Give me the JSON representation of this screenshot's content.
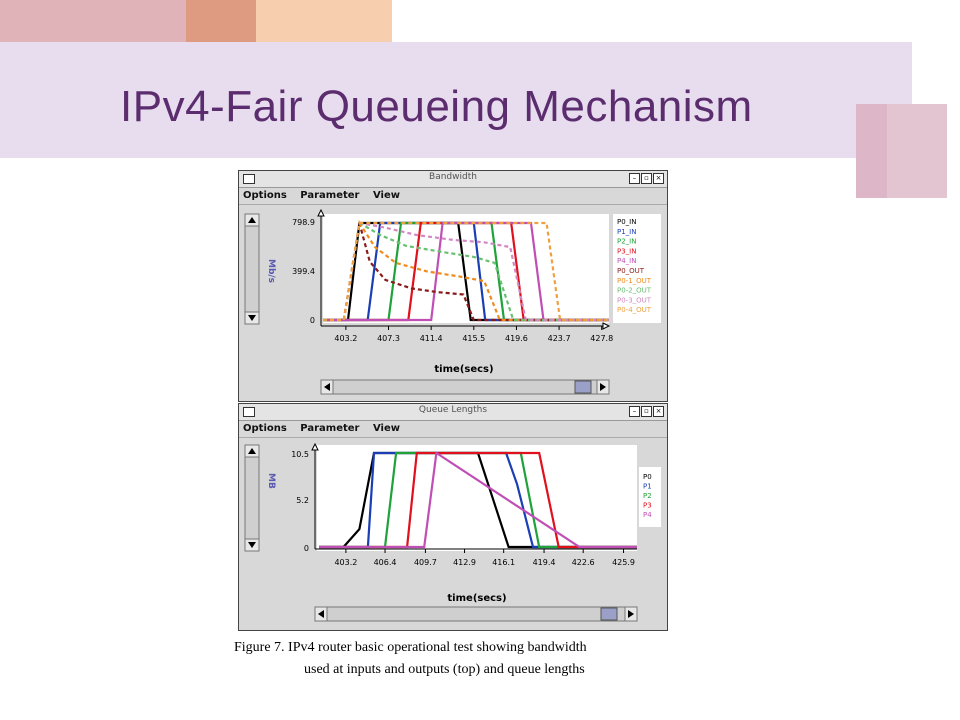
{
  "slide": {
    "title": "IPv4-Fair Queueing Mechanism",
    "caption_line1": "Figure 7. IPv4 router basic operational test showing bandwidth",
    "caption_line2": "used at inputs and outputs (top) and queue lengths",
    "colors": {
      "title": "#5b2d6e",
      "band": "#e8dcef",
      "pink": "#dfb3b8",
      "salmon": "#df9a82",
      "peach": "#f7cfae",
      "mauve": "#ddb6c8"
    }
  },
  "bandwidth_window": {
    "title": "Bandwidth",
    "menu": [
      "Options",
      "Parameter",
      "View"
    ],
    "y_axis_label": "Mb/s",
    "x_axis_label": "time(secs)",
    "y_ticks": [
      "798.9",
      "399.4",
      "0"
    ],
    "x_ticks": [
      "403.2",
      "407.3",
      "411.4",
      "415.5",
      "419.6",
      "423.7",
      "427.8"
    ],
    "legend": [
      "P0_IN",
      "P1_IN",
      "P2_IN",
      "P3_IN",
      "P4_IN",
      "P0_OUT",
      "P0-1_OUT",
      "P0-2_OUT",
      "P0-3_OUT",
      "P0-4_OUT"
    ]
  },
  "queue_window": {
    "title": "Queue Lengths",
    "menu": [
      "Options",
      "Parameter",
      "View"
    ],
    "y_axis_label": "MB",
    "x_axis_label": "time(secs)",
    "y_ticks": [
      "10.5",
      "5.2",
      "0"
    ],
    "x_ticks": [
      "403.2",
      "406.4",
      "409.7",
      "412.9",
      "416.1",
      "419.4",
      "422.6",
      "425.9"
    ],
    "legend": [
      "P0",
      "P1",
      "P2",
      "P3",
      "P4"
    ]
  },
  "chart_data": [
    {
      "type": "line",
      "xlabel": "time(secs)",
      "ylabel": "Mb/s",
      "xlim": [
        401.0,
        428.5
      ],
      "ylim": [
        0,
        798.9
      ],
      "series": [
        {
          "name": "P0_IN",
          "color": "#000000",
          "dash": false,
          "x": [
            401.0,
            403.4,
            404.5,
            414.0,
            415.2,
            428.5
          ],
          "y": [
            0,
            0,
            798.9,
            798.9,
            0,
            0
          ]
        },
        {
          "name": "P1_IN",
          "color": "#1a3fb5",
          "dash": false,
          "x": [
            401.0,
            405.3,
            406.5,
            415.5,
            416.6,
            428.5
          ],
          "y": [
            0,
            0,
            798.9,
            798.9,
            0,
            0
          ]
        },
        {
          "name": "P2_IN",
          "color": "#1fa23a",
          "dash": false,
          "x": [
            401.0,
            407.3,
            408.5,
            417.2,
            418.4,
            428.5
          ],
          "y": [
            0,
            0,
            798.9,
            798.9,
            0,
            0
          ]
        },
        {
          "name": "P3_IN",
          "color": "#e0101c",
          "dash": false,
          "x": [
            401.0,
            409.2,
            410.4,
            419.1,
            420.3,
            428.5
          ],
          "y": [
            0,
            0,
            798.9,
            798.9,
            0,
            0
          ]
        },
        {
          "name": "P4_IN",
          "color": "#c04fb5",
          "dash": false,
          "x": [
            401.0,
            411.4,
            412.5,
            421.0,
            422.2,
            428.5
          ],
          "y": [
            0,
            0,
            798.9,
            798.9,
            0,
            0
          ]
        },
        {
          "name": "P0_OUT",
          "color": "#8b1a1a",
          "dash": true,
          "x": [
            401.0,
            403.0,
            404.5,
            405.5,
            407.0,
            409.5,
            412.0,
            414.5,
            415.5,
            428.5
          ],
          "y": [
            0,
            0,
            798.9,
            480,
            330,
            260,
            230,
            210,
            0,
            0
          ]
        },
        {
          "name": "P0-1_OUT",
          "color": "#f08c1e",
          "dash": true,
          "x": [
            401.0,
            403.0,
            404.5,
            406.0,
            408.0,
            411.0,
            414.0,
            416.5,
            418.0,
            428.5
          ],
          "y": [
            0,
            0,
            798.9,
            600,
            470,
            400,
            360,
            320,
            0,
            0
          ]
        },
        {
          "name": "P0-2_OUT",
          "color": "#68c071",
          "dash": true,
          "x": [
            401.0,
            403.0,
            404.5,
            406.5,
            409.0,
            412.5,
            415.5,
            417.5,
            419.3,
            428.5
          ],
          "y": [
            0,
            0,
            798.9,
            700,
            610,
            560,
            520,
            470,
            0,
            0
          ]
        },
        {
          "name": "P0-3_OUT",
          "color": "#d089c2",
          "dash": true,
          "x": [
            401.0,
            403.0,
            404.5,
            407.0,
            410.0,
            413.5,
            416.5,
            419.0,
            420.5,
            428.5
          ],
          "y": [
            0,
            0,
            798.9,
            760,
            700,
            660,
            640,
            600,
            0,
            0
          ]
        },
        {
          "name": "P0-4_OUT",
          "color": "#f0a040",
          "dash": true,
          "x": [
            401.0,
            403.0,
            404.5,
            422.5,
            423.8,
            428.5
          ],
          "y": [
            0,
            0,
            798.9,
            798.9,
            0,
            0
          ]
        }
      ]
    },
    {
      "type": "line",
      "xlabel": "time(secs)",
      "ylabel": "MB",
      "xlim": [
        401.0,
        427.0
      ],
      "ylim": [
        0,
        10.5
      ],
      "series": [
        {
          "name": "P0",
          "color": "#000000",
          "x": [
            401.0,
            403.0,
            404.3,
            405.5,
            414.0,
            416.5,
            427.0
          ],
          "y": [
            0,
            0,
            2,
            10.5,
            10.5,
            0,
            0
          ]
        },
        {
          "name": "P1",
          "color": "#1a3fb5",
          "x": [
            401.0,
            405.0,
            405.5,
            416.3,
            417.2,
            418.5,
            427.0
          ],
          "y": [
            0,
            0,
            10.5,
            10.5,
            7.0,
            0,
            0
          ]
        },
        {
          "name": "P2",
          "color": "#1fa23a",
          "x": [
            401.0,
            406.4,
            407.3,
            417.5,
            419.0,
            427.0
          ],
          "y": [
            0,
            0,
            10.5,
            10.5,
            0,
            0
          ]
        },
        {
          "name": "P3",
          "color": "#e0101c",
          "x": [
            401.0,
            408.2,
            409.0,
            419.0,
            420.6,
            427.0
          ],
          "y": [
            0,
            0,
            10.5,
            10.5,
            0,
            0
          ]
        },
        {
          "name": "P4",
          "color": "#c04fb5",
          "x": [
            401.0,
            409.6,
            410.6,
            422.3,
            427.0
          ],
          "y": [
            0,
            0,
            10.5,
            0,
            0
          ]
        }
      ]
    }
  ]
}
